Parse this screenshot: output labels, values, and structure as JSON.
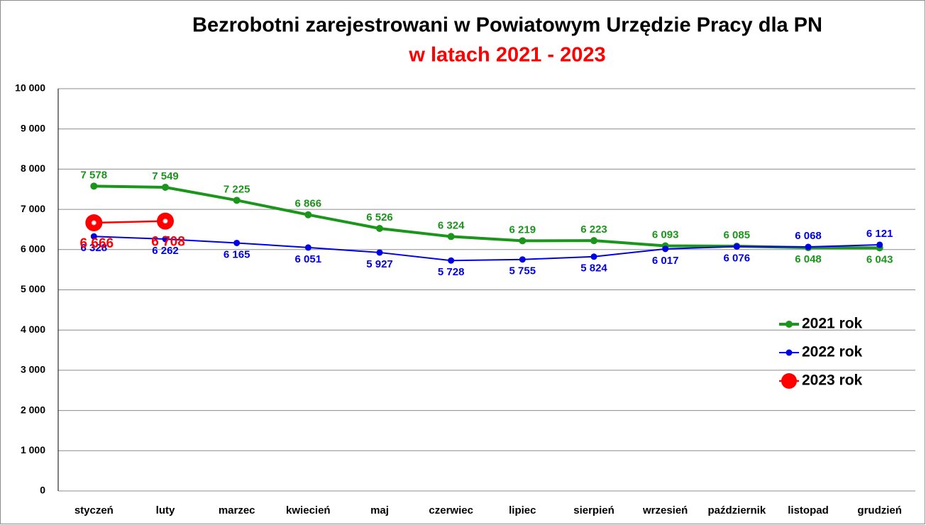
{
  "chart_data": {
    "type": "line",
    "title": "Bezrobotni zarejestrowani w Powiatowym Urzędzie Pracy dla PN",
    "subtitle": "w latach 2021 - 2023",
    "categories": [
      "styczeń",
      "luty",
      "marzec",
      "kwiecień",
      "maj",
      "czerwiec",
      "lipiec",
      "sierpień",
      "wrzesień",
      "październik",
      "listopad",
      "grudzień"
    ],
    "series": [
      {
        "name": "2021 rok",
        "color": "#1a961a",
        "values": [
          7578,
          7549,
          7225,
          6866,
          6526,
          6324,
          6219,
          6223,
          6093,
          6085,
          6048,
          6043
        ],
        "value_labels": [
          "7 578",
          "7 549",
          "7 225",
          "6 866",
          "6 526",
          "6 324",
          "6 219",
          "6 223",
          "6 093",
          "6 085",
          "6 048",
          "6 043"
        ]
      },
      {
        "name": "2022 rok",
        "color": "#0000e6",
        "values": [
          6328,
          6262,
          6165,
          6051,
          5927,
          5728,
          5755,
          5824,
          6017,
          6076,
          6068,
          6121
        ],
        "value_labels": [
          "6 328",
          "6 262",
          "6 165",
          "6 051",
          "5 927",
          "5 728",
          "5 755",
          "5 824",
          "6 017",
          "6 076",
          "6 068",
          "6 121"
        ]
      },
      {
        "name": "2023 rok",
        "color": "#ff0000",
        "values": [
          6666,
          6708,
          null,
          null,
          null,
          null,
          null,
          null,
          null,
          null,
          null,
          null
        ],
        "value_labels": [
          "6 666",
          "6 708",
          null,
          null,
          null,
          null,
          null,
          null,
          null,
          null,
          null,
          null
        ]
      }
    ],
    "ylim": [
      0,
      10000
    ],
    "yticks": [
      0,
      {
        "value": 1000,
        "label": "1 000"
      },
      {
        "value": 2000,
        "label": "2 000"
      },
      {
        "value": 3000,
        "label": "3 000"
      },
      {
        "value": 4000,
        "label": "4 000"
      },
      {
        "value": 5000,
        "label": "5 000"
      },
      {
        "value": 6000,
        "label": "6 000"
      },
      {
        "value": 7000,
        "label": "7 000"
      },
      {
        "value": 8000,
        "label": "8 000"
      },
      {
        "value": 9000,
        "label": "9 000"
      },
      {
        "value": 10000,
        "label": "10 000"
      }
    ],
    "grid": true,
    "legend": "right"
  }
}
